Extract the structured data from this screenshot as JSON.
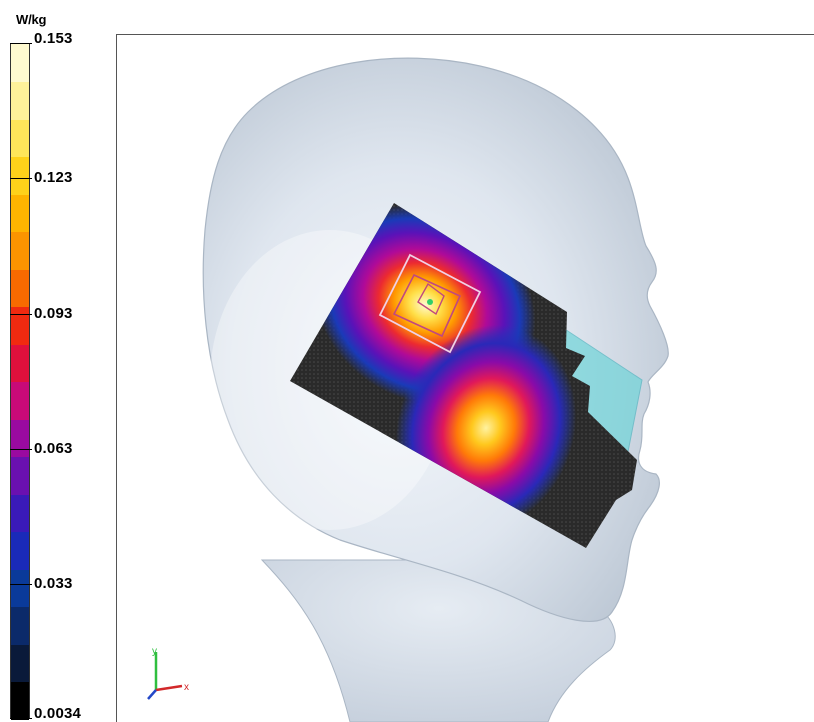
{
  "chart_data": {
    "type": "heatmap",
    "title": "",
    "colorbar": {
      "unit": "W/kg",
      "ticks": [
        0.153,
        0.123,
        0.093,
        0.063,
        0.033,
        0.0034
      ],
      "tick_labels": [
        "0.153",
        "0.123",
        "0.093",
        "0.063",
        "0.033",
        "0.0034"
      ],
      "vmin": 0.0034,
      "vmax": 0.153,
      "colors": [
        "#000000",
        "#0a1a3a",
        "#0b2a6a",
        "#0a3a9a",
        "#1a2ab8",
        "#3a1ab8",
        "#6a10b0",
        "#9a0aa0",
        "#c80a78",
        "#e0103c",
        "#f02a10",
        "#f86a00",
        "#fc9400",
        "#ffb400",
        "#ffd21a",
        "#ffe65a",
        "#fff29a",
        "#fffad0"
      ]
    },
    "hotspots": [
      {
        "name": "",
        "value": 0.153
      },
      {
        "name": "",
        "value": 0.123
      }
    ],
    "axes_triad": {
      "x_label": "x",
      "y_label": "y"
    }
  }
}
